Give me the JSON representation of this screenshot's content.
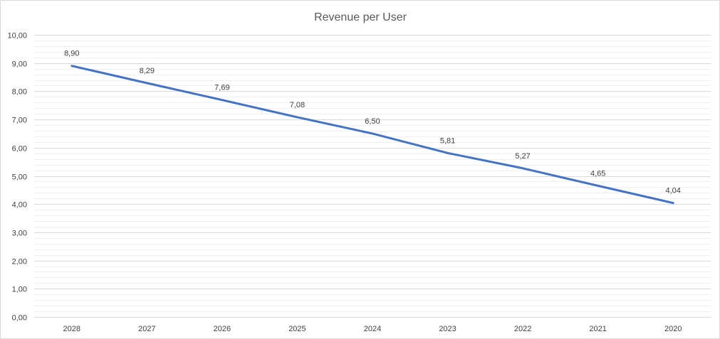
{
  "chart_data": {
    "type": "line",
    "title": "Revenue per User",
    "xlabel": "",
    "ylabel": "",
    "categories": [
      "2028",
      "2027",
      "2026",
      "2025",
      "2024",
      "2023",
      "2022",
      "2021",
      "2020"
    ],
    "series": [
      {
        "values": [
          8.9,
          8.29,
          7.69,
          7.08,
          6.5,
          5.81,
          5.27,
          4.65,
          4.04
        ],
        "data_labels": [
          "8,90",
          "8,29",
          "7,69",
          "7,08",
          "6,50",
          "5,81",
          "5,27",
          "4,65",
          "4,04"
        ],
        "color": "#4472c4"
      }
    ],
    "ylim": [
      0,
      10
    ],
    "y_ticks": [
      0,
      1,
      2,
      3,
      4,
      5,
      6,
      7,
      8,
      9,
      10
    ],
    "y_tick_labels": [
      "0,00",
      "1,00",
      "2,00",
      "3,00",
      "4,00",
      "5,00",
      "6,00",
      "7,00",
      "8,00",
      "9,00",
      "10,00"
    ],
    "minor_grid_step": 0.2,
    "grid": true,
    "legend": "none"
  }
}
